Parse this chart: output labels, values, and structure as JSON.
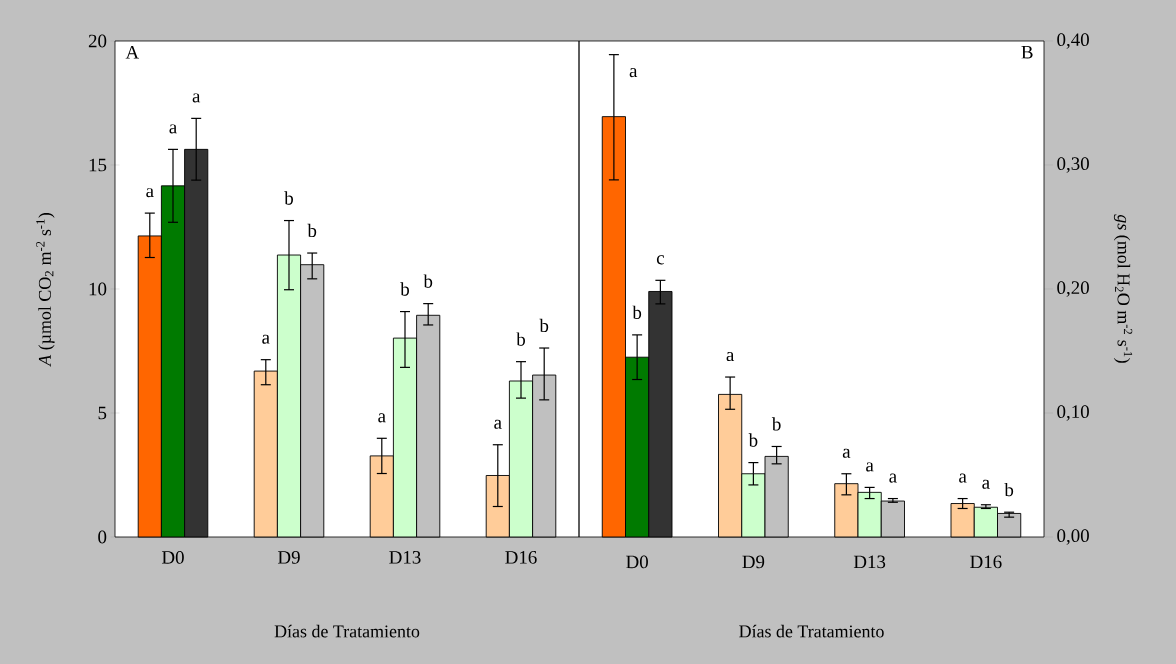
{
  "chart_data": [
    {
      "type": "bar",
      "title": "A",
      "xlabel": "Días de Tratamiento",
      "ylabel": "*A*  (µmol CO$_{2}$ m$^{-2}$  s$^{-1}$)",
      "categories": [
        "D0",
        "D9",
        "D13",
        "D16"
      ],
      "ylim": [
        0,
        20
      ],
      "yticks": [
        0,
        5,
        10,
        15,
        20
      ],
      "series": [
        {
          "colors": [
            "#ff6600",
            "#ffcc99",
            "#ffcc99",
            "#ffcc99"
          ],
          "values": [
            12.14,
            6.69,
            3.27,
            2.48
          ],
          "errors": [
            [
              11.27,
              13.06
            ],
            [
              6.14,
              7.15
            ],
            [
              2.56,
              3.98
            ],
            [
              1.23,
              3.72
            ]
          ],
          "value_labels": [
            "a",
            "a",
            "a",
            "a"
          ]
        },
        {
          "colors": [
            "#007a00",
            "#ccffcc",
            "#ccffcc",
            "#ccffcc"
          ],
          "values": [
            14.16,
            11.37,
            8.02,
            6.29
          ],
          "errors": [
            [
              12.69,
              15.63
            ],
            [
              9.97,
              12.76
            ],
            [
              6.84,
              9.09
            ],
            [
              5.6,
              7.07
            ]
          ],
          "value_labels": [
            "a",
            "b",
            "b",
            "b"
          ]
        },
        {
          "colors": [
            "#333333",
            "#c0c0c0",
            "#c0c0c0",
            "#c0c0c0"
          ],
          "values": [
            15.63,
            10.98,
            8.94,
            6.53
          ],
          "errors": [
            [
              14.39,
              16.88
            ],
            [
              10.41,
              11.45
            ],
            [
              8.55,
              9.41
            ],
            [
              5.53,
              7.62
            ]
          ],
          "value_labels": [
            "a",
            "b",
            "b",
            "b"
          ]
        }
      ]
    },
    {
      "type": "bar",
      "title": "B",
      "xlabel": "Días de Tratamiento",
      "y2label": "*gs*  (mol H$_{2}$O m$^{-2}$  s$^{-1}$)",
      "categories": [
        "D0",
        "D9",
        "D13",
        "D16"
      ],
      "y2lim": [
        0,
        0.4
      ],
      "y2ticks": [
        {
          "value": 0,
          "label": "0,00"
        },
        {
          "value": 0.1,
          "label": "0,10"
        },
        {
          "value": 0.2,
          "label": "0,20"
        },
        {
          "value": 0.3,
          "label": "0,30"
        },
        {
          "value": 0.4,
          "label": "0,40"
        }
      ],
      "series": [
        {
          "axis": "y2",
          "colors": [
            "#ff6600",
            "#ffcc99",
            "#ffcc99",
            "#ffcc99"
          ],
          "values": [
            0.339,
            0.115,
            0.043,
            0.027
          ],
          "errors": [
            [
              0.288,
              0.389
            ],
            [
              0.103,
              0.129
            ],
            [
              0.034,
              0.051
            ],
            [
              0.023,
              0.031
            ]
          ],
          "value_labels": [
            "a",
            "a",
            "a",
            "a"
          ]
        },
        {
          "axis": "y2",
          "colors": [
            "#007a00",
            "#ccffcc",
            "#ccffcc",
            "#ccffcc"
          ],
          "values": [
            0.145,
            0.051,
            0.036,
            0.024
          ],
          "errors": [
            [
              0.127,
              0.163
            ],
            [
              0.042,
              0.06
            ],
            [
              0.031,
              0.04
            ],
            [
              0.023,
              0.026
            ]
          ],
          "value_labels": [
            "b",
            "b",
            "a",
            "a"
          ]
        },
        {
          "axis": "y2",
          "colors": [
            "#333333",
            "#c0c0c0",
            "#c0c0c0",
            "#c0c0c0"
          ],
          "values": [
            0.198,
            0.065,
            0.029,
            0.019
          ],
          "errors": [
            [
              0.188,
              0.207
            ],
            [
              0.059,
              0.073
            ],
            [
              0.028,
              0.031
            ],
            [
              0.016,
              0.02
            ]
          ],
          "value_labels": [
            "c",
            "b",
            "a",
            "b"
          ]
        }
      ]
    }
  ]
}
